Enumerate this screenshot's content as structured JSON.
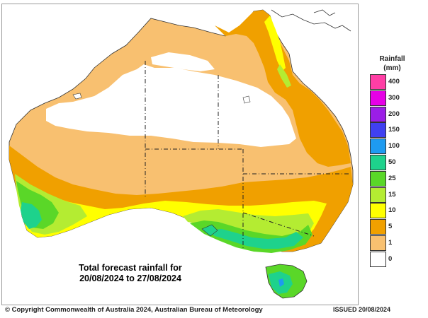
{
  "map": {
    "caption_line1": "Total forecast rainfall for",
    "caption_line2": "20/08/2024 to 27/08/2024"
  },
  "legend": {
    "title_line1": "Rainfall",
    "title_line2": "(mm)",
    "items": [
      {
        "label": "400",
        "color": "#ff3ea5"
      },
      {
        "label": "300",
        "color": "#e600e6"
      },
      {
        "label": "200",
        "color": "#9b1ee6"
      },
      {
        "label": "150",
        "color": "#4040f0"
      },
      {
        "label": "100",
        "color": "#1e9bf0"
      },
      {
        "label": "50",
        "color": "#1ed28c"
      },
      {
        "label": "25",
        "color": "#5ad728"
      },
      {
        "label": "15",
        "color": "#b4ec32"
      },
      {
        "label": "10",
        "color": "#ffff00"
      },
      {
        "label": "5",
        "color": "#f0a000"
      },
      {
        "label": "1",
        "color": "#f8c070"
      },
      {
        "label": "0",
        "color": "#ffffff"
      }
    ]
  },
  "footer": {
    "copyright": "© Copyright Commonwealth of Australia 2024, Australian Bureau of Meteorology",
    "issued": "ISSUED 20/08/2024"
  }
}
